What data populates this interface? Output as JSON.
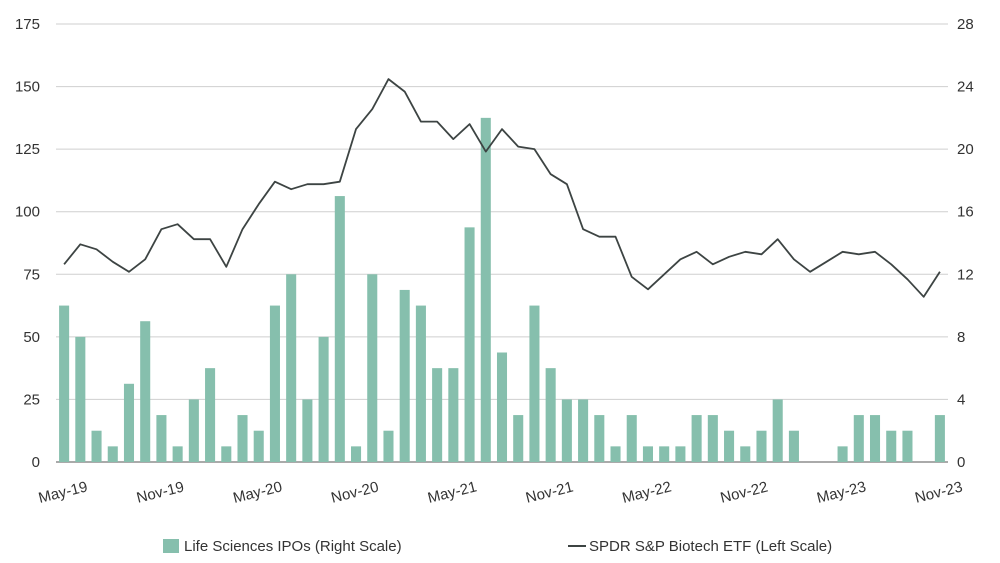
{
  "chart_data": {
    "type": "bar+line",
    "title": "",
    "xlabel": "",
    "x_tick_labels": [
      "May-19",
      "Nov-19",
      "May-20",
      "Nov-20",
      "May-21",
      "Nov-21",
      "May-22",
      "Nov-22",
      "May-23",
      "Nov-23"
    ],
    "y_left": {
      "ticks": [
        "0",
        "25",
        "50",
        "75",
        "100",
        "125",
        "150",
        "175"
      ],
      "ylim": [
        0,
        175
      ]
    },
    "y_right": {
      "ticks": [
        "0",
        "4",
        "8",
        "12",
        "16",
        "20",
        "24",
        "28"
      ],
      "ylim": [
        0,
        28
      ]
    },
    "grid": true,
    "legend_position": "bottom",
    "months": [
      "May-19",
      "Jun-19",
      "Jul-19",
      "Aug-19",
      "Sep-19",
      "Oct-19",
      "Nov-19",
      "Dec-19",
      "Jan-20",
      "Feb-20",
      "Mar-20",
      "Apr-20",
      "May-20",
      "Jun-20",
      "Jul-20",
      "Aug-20",
      "Sep-20",
      "Oct-20",
      "Nov-20",
      "Dec-20",
      "Jan-21",
      "Feb-21",
      "Mar-21",
      "Apr-21",
      "May-21",
      "Jun-21",
      "Jul-21",
      "Aug-21",
      "Sep-21",
      "Oct-21",
      "Nov-21",
      "Dec-21",
      "Jan-22",
      "Feb-22",
      "Mar-22",
      "Apr-22",
      "May-22",
      "Jun-22",
      "Jul-22",
      "Aug-22",
      "Sep-22",
      "Oct-22",
      "Nov-22",
      "Dec-22",
      "Jan-23",
      "Feb-23",
      "Mar-23",
      "Apr-23",
      "May-23",
      "Jun-23",
      "Jul-23",
      "Aug-23",
      "Sep-23",
      "Oct-23",
      "Nov-23"
    ],
    "series": [
      {
        "name": "Life Sciences IPOs (Right Scale)",
        "type": "bar",
        "axis": "right",
        "color": "#86bfad",
        "values": [
          10,
          8,
          2,
          1,
          5,
          9,
          3,
          1,
          4,
          6,
          1,
          3,
          2,
          10,
          12,
          4,
          8,
          17,
          1,
          12,
          2,
          11,
          10,
          6,
          6,
          15,
          22,
          7,
          3,
          10,
          6,
          4,
          4,
          3,
          1,
          3,
          1,
          1,
          1,
          3,
          3,
          2,
          1,
          2,
          4,
          2,
          0,
          0,
          1,
          3,
          3,
          2,
          2,
          0,
          3
        ]
      },
      {
        "name": "SPDR S&P Biotech ETF (Left Scale)",
        "type": "line",
        "axis": "left",
        "color": "#3d4443",
        "values": [
          79,
          87,
          85,
          80,
          76,
          81,
          93,
          95,
          89,
          89,
          78,
          93,
          103,
          112,
          109,
          111,
          111,
          112,
          133,
          141,
          153,
          148,
          136,
          136,
          129,
          135,
          124,
          133,
          126,
          125,
          115,
          111,
          93,
          90,
          90,
          74,
          69,
          75,
          81,
          84,
          79,
          82,
          84,
          83,
          89,
          81,
          76,
          80,
          84,
          83,
          84,
          79,
          73,
          66,
          76
        ]
      }
    ]
  }
}
